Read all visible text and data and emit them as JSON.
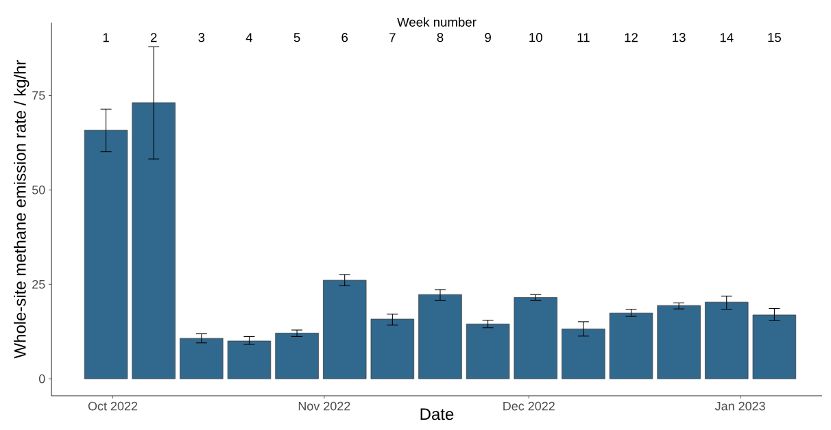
{
  "chart_data": {
    "type": "bar",
    "xlabel": "Date",
    "ylabel": "Whole-site methane emission rate / kg/hr",
    "x2label": "Week number",
    "x": [
      "2022-09-30",
      "2022-10-07",
      "2022-10-14",
      "2022-10-21",
      "2022-10-28",
      "2022-11-04",
      "2022-11-11",
      "2022-11-18",
      "2022-11-25",
      "2022-12-02",
      "2022-12-09",
      "2022-12-16",
      "2022-12-23",
      "2022-12-30",
      "2023-01-06"
    ],
    "values": [
      65.8,
      73.1,
      10.7,
      10.0,
      12.1,
      26.1,
      15.8,
      22.3,
      14.5,
      21.5,
      13.2,
      17.4,
      19.4,
      20.3,
      16.9
    ],
    "errors": [
      [
        60.1,
        71.4
      ],
      [
        58.2,
        87.9
      ],
      [
        9.5,
        11.9
      ],
      [
        9.1,
        11.2
      ],
      [
        11.2,
        12.9
      ],
      [
        24.6,
        27.6
      ],
      [
        14.2,
        17.1
      ],
      [
        20.8,
        23.6
      ],
      [
        13.5,
        15.5
      ],
      [
        20.8,
        22.3
      ],
      [
        11.3,
        15.1
      ],
      [
        16.5,
        18.4
      ],
      [
        18.5,
        20.1
      ],
      [
        18.4,
        21.9
      ],
      [
        15.4,
        18.6
      ]
    ],
    "color": "#31688e",
    "xlim": [
      "2022-09-22",
      "2023-01-13"
    ],
    "xticks": [
      {
        "value": "2022-10-01",
        "label": "Oct 2022"
      },
      {
        "value": "2022-11-01",
        "label": "Nov 2022"
      },
      {
        "value": "2022-12-01",
        "label": "Dec 2022"
      },
      {
        "value": "2023-01-01",
        "label": "Jan 2023"
      }
    ],
    "x2lim": [
      "2022-09-22",
      "2023-01-13"
    ],
    "x2ticks": [
      {
        "value": "2022-09-30",
        "label": "1"
      },
      {
        "value": "2022-10-07",
        "label": "2"
      },
      {
        "value": "2022-10-14",
        "label": "3"
      },
      {
        "value": "2022-10-21",
        "label": "4"
      },
      {
        "value": "2022-10-28",
        "label": "5"
      },
      {
        "value": "2022-11-04",
        "label": "6"
      },
      {
        "value": "2022-11-11",
        "label": "7"
      },
      {
        "value": "2022-11-18",
        "label": "8"
      },
      {
        "value": "2022-11-25",
        "label": "9"
      },
      {
        "value": "2022-12-02",
        "label": "10"
      },
      {
        "value": "2022-12-09",
        "label": "11"
      },
      {
        "value": "2022-12-16",
        "label": "12"
      },
      {
        "value": "2022-12-23",
        "label": "13"
      },
      {
        "value": "2022-12-30",
        "label": "14"
      },
      {
        "value": "2023-01-06",
        "label": "15"
      }
    ],
    "ylim": [
      -4.5,
      94.3
    ],
    "yticks": [
      0,
      25,
      50,
      75
    ]
  }
}
